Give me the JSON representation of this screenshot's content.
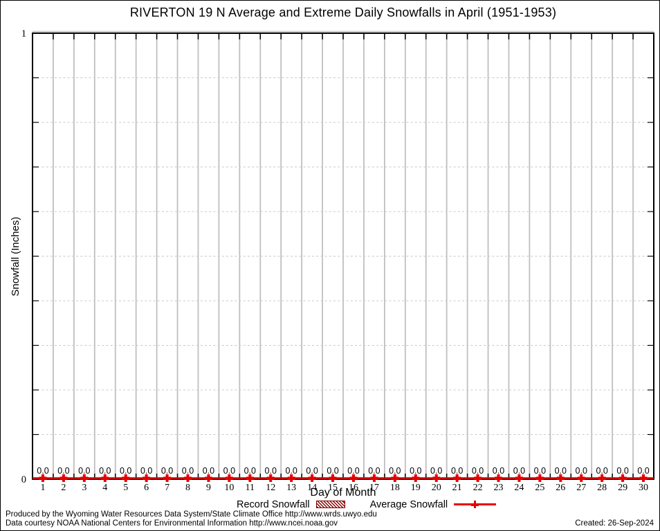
{
  "chart_data": {
    "type": "line",
    "title": "RIVERTON 19 N Average and Extreme Daily Snowfalls in April (1951-1953)",
    "xlabel": "Day of Month",
    "ylabel": "Snowfall (Inches)",
    "xlim": [
      0.5,
      30.5
    ],
    "ylim": [
      0,
      1
    ],
    "ytick_labels": [
      {
        "value": 0,
        "label": "0"
      },
      {
        "value": 1,
        "label": "1"
      }
    ],
    "ytick_minor_step": 0.1,
    "grid": {
      "vertical_day_dividers": true,
      "horizontal_dashed_minor": true
    },
    "legend_position": "bottom-center",
    "x": [
      1,
      2,
      3,
      4,
      5,
      6,
      7,
      8,
      9,
      10,
      11,
      12,
      13,
      14,
      15,
      16,
      17,
      18,
      19,
      20,
      21,
      22,
      23,
      24,
      25,
      26,
      27,
      28,
      29,
      30
    ],
    "series": [
      {
        "name": "Record Snowfall",
        "style": "boxes-hatched",
        "color": "#8b0000",
        "values": [
          0,
          0,
          0,
          0,
          0,
          0,
          0,
          0,
          0,
          0,
          0,
          0,
          0,
          0,
          0,
          0,
          0,
          0,
          0,
          0,
          0,
          0,
          0,
          0,
          0,
          0,
          0,
          0,
          0,
          0
        ]
      },
      {
        "name": "Average Snowfall",
        "style": "line-points",
        "color": "#e60000",
        "values": [
          0,
          0,
          0,
          0,
          0,
          0,
          0,
          0,
          0,
          0,
          0,
          0,
          0,
          0,
          0,
          0,
          0,
          0,
          0,
          0,
          0,
          0,
          0,
          0,
          0,
          0,
          0,
          0,
          0,
          0
        ],
        "point_labels": [
          "0.0",
          "0.0",
          "0.0",
          "0.0",
          "0.0",
          "0.0",
          "0.0",
          "0.0",
          "0.0",
          "0.0",
          "0.0",
          "0.0",
          "0.0",
          "0.0",
          "0.0",
          "0.0",
          "0.0",
          "0.0",
          "0.0",
          "0.0",
          "0.0",
          "0.0",
          "0.0",
          "0.0",
          "0.0",
          "0.0",
          "0.0",
          "0.0",
          "0.0",
          "0.0"
        ]
      }
    ]
  },
  "footer": {
    "line1": "Produced by the Wyoming Water Resources Data System/State Climate Office http://www.wrds.uwyo.edu",
    "line2": "Data courtesy NOAA National Centers for Environmental Information http://www.ncei.noaa.gov",
    "created": "Created: 26-Sep-2024"
  },
  "colors": {
    "average_line": "#e60000",
    "record_fill": "#8b0000",
    "grid_vertical": "#bfbfbf",
    "grid_dashed": "#c9c9c9",
    "border": "#000000",
    "text": "#000000"
  }
}
